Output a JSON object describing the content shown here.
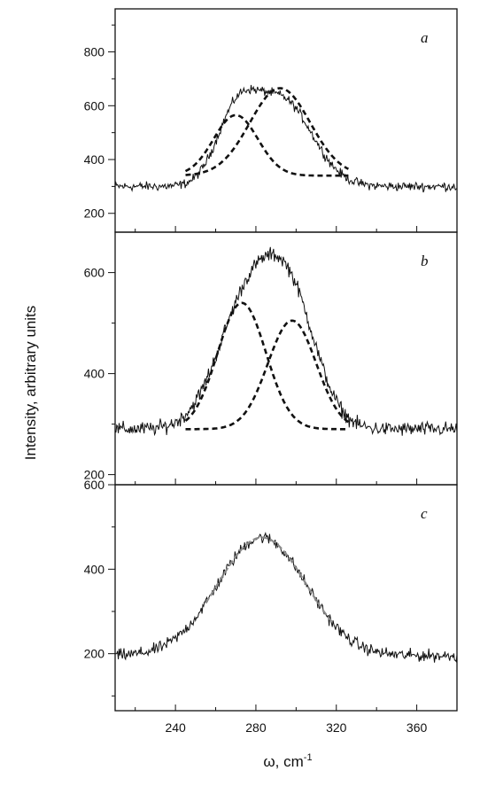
{
  "chart_data": {
    "type": "line",
    "ylabel": "Intensity, arbitrary units",
    "xlabel_symbol": "ω, cm",
    "xlabel_superscript": "-1",
    "xlim": [
      210,
      380
    ],
    "x_ticks": [
      240,
      280,
      320,
      360
    ],
    "panels": [
      {
        "label": "a",
        "ylim": [
          130,
          960
        ],
        "y_ticks": [
          200,
          400,
          600,
          800
        ],
        "baseline": 300,
        "noise": 12,
        "peaks": [
          {
            "center": 270,
            "height": 230,
            "sigma": 10
          },
          {
            "center": 293,
            "height": 320,
            "sigma": 15
          }
        ],
        "dashed_components": [
          {
            "center": 270,
            "height": 565,
            "sigma": 11,
            "base": 340,
            "x_start": 245,
            "x_end": 326
          },
          {
            "center": 292,
            "height": 665,
            "sigma": 15,
            "base": 340,
            "x_start": 245,
            "x_end": 326
          }
        ],
        "gray_fit": null
      },
      {
        "label": "b",
        "ylim": [
          180,
          680
        ],
        "y_ticks": [
          200,
          400,
          600
        ],
        "baseline": 290,
        "noise": 10,
        "peaks": [
          {
            "center": 276,
            "height": 250,
            "sigma": 15
          },
          {
            "center": 298,
            "height": 220,
            "sigma": 13
          }
        ],
        "dashed_components": [
          {
            "center": 273,
            "height": 540,
            "sigma": 12,
            "base": 290,
            "x_start": 245,
            "x_end": 326
          },
          {
            "center": 298,
            "height": 505,
            "sigma": 12,
            "base": 290,
            "x_start": 245,
            "x_end": 326
          }
        ],
        "gray_fit": null
      },
      {
        "label": "c",
        "ylim": [
          65,
          600
        ],
        "y_ticks": [
          200,
          400,
          600
        ],
        "baseline": 195,
        "noise": 10,
        "peaks": [
          {
            "center": 283,
            "height": 280,
            "sigma": 22
          }
        ],
        "dashed_components": [],
        "gray_fit": {
          "center": 283,
          "height": 475,
          "sigma": 22,
          "base": 195,
          "x_start": 255,
          "x_end": 318
        }
      }
    ]
  }
}
